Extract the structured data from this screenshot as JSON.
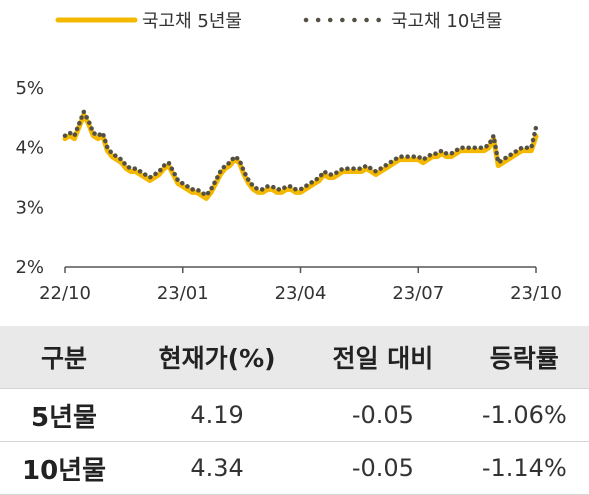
{
  "chart_data": {
    "type": "line",
    "title": "",
    "xlabel": "",
    "ylabel": "",
    "ylim": [
      2,
      5
    ],
    "y_ticks": [
      "5%",
      "4%",
      "3%",
      "2%"
    ],
    "y_tick_values": [
      5,
      4,
      3,
      2
    ],
    "x_ticks": [
      "22/10",
      "23/01",
      "23/04",
      "23/07",
      "23/10"
    ],
    "grid": false,
    "legend_position": "top",
    "x_index_range": [
      0,
      100
    ],
    "series": [
      {
        "name": "국고채 5년물",
        "color": "#f5b800",
        "style": "solid",
        "x": [
          0,
          1,
          2,
          3,
          4,
          5,
          6,
          7,
          8,
          9,
          10,
          11,
          12,
          13,
          14,
          15,
          16,
          17,
          18,
          19,
          20,
          21,
          22,
          23,
          24,
          25,
          26,
          27,
          28,
          29,
          30,
          31,
          32,
          33,
          34,
          35,
          36,
          37,
          38,
          39,
          40,
          41,
          42,
          43,
          44,
          45,
          46,
          47,
          48,
          49,
          50,
          51,
          52,
          53,
          54,
          55,
          56,
          57,
          58,
          59,
          60,
          61,
          62,
          63,
          64,
          65,
          66,
          67,
          68,
          69,
          70,
          71,
          72,
          73,
          74,
          75,
          76,
          77,
          78,
          79,
          80,
          81,
          82,
          83,
          84,
          85,
          86,
          87,
          88,
          89,
          90,
          91,
          92,
          93,
          94,
          95,
          96,
          97,
          98,
          99,
          100
        ],
        "values": [
          4.15,
          4.2,
          4.15,
          4.35,
          4.55,
          4.4,
          4.2,
          4.15,
          4.2,
          3.95,
          3.85,
          3.8,
          3.75,
          3.65,
          3.6,
          3.6,
          3.55,
          3.5,
          3.45,
          3.5,
          3.55,
          3.65,
          3.7,
          3.55,
          3.4,
          3.35,
          3.3,
          3.25,
          3.25,
          3.2,
          3.15,
          3.25,
          3.4,
          3.55,
          3.65,
          3.7,
          3.8,
          3.75,
          3.55,
          3.4,
          3.3,
          3.25,
          3.25,
          3.3,
          3.3,
          3.25,
          3.25,
          3.3,
          3.3,
          3.25,
          3.25,
          3.3,
          3.35,
          3.4,
          3.45,
          3.55,
          3.5,
          3.5,
          3.55,
          3.6,
          3.6,
          3.6,
          3.6,
          3.6,
          3.65,
          3.6,
          3.55,
          3.6,
          3.65,
          3.7,
          3.75,
          3.8,
          3.8,
          3.8,
          3.8,
          3.8,
          3.75,
          3.8,
          3.85,
          3.85,
          3.9,
          3.85,
          3.85,
          3.9,
          3.95,
          3.95,
          3.95,
          3.95,
          3.95,
          3.95,
          4.0,
          4.15,
          3.7,
          3.75,
          3.8,
          3.85,
          3.9,
          3.95,
          3.95,
          3.95,
          4.19
        ]
      },
      {
        "name": "국고채 10년물",
        "color": "#555044",
        "style": "dotted",
        "x": [
          0,
          1,
          2,
          3,
          4,
          5,
          6,
          7,
          8,
          9,
          10,
          11,
          12,
          13,
          14,
          15,
          16,
          17,
          18,
          19,
          20,
          21,
          22,
          23,
          24,
          25,
          26,
          27,
          28,
          29,
          30,
          31,
          32,
          33,
          34,
          35,
          36,
          37,
          38,
          39,
          40,
          41,
          42,
          43,
          44,
          45,
          46,
          47,
          48,
          49,
          50,
          51,
          52,
          53,
          54,
          55,
          56,
          57,
          58,
          59,
          60,
          61,
          62,
          63,
          64,
          65,
          66,
          67,
          68,
          69,
          70,
          71,
          72,
          73,
          74,
          75,
          76,
          77,
          78,
          79,
          80,
          81,
          82,
          83,
          84,
          85,
          86,
          87,
          88,
          89,
          90,
          91,
          92,
          93,
          94,
          95,
          96,
          97,
          98,
          99,
          100
        ],
        "values": [
          4.2,
          4.25,
          4.2,
          4.4,
          4.6,
          4.45,
          4.25,
          4.2,
          4.25,
          4.0,
          3.9,
          3.85,
          3.8,
          3.7,
          3.65,
          3.65,
          3.6,
          3.55,
          3.5,
          3.55,
          3.6,
          3.7,
          3.75,
          3.6,
          3.45,
          3.4,
          3.35,
          3.3,
          3.3,
          3.25,
          3.2,
          3.3,
          3.45,
          3.6,
          3.7,
          3.75,
          3.85,
          3.8,
          3.6,
          3.45,
          3.35,
          3.3,
          3.3,
          3.35,
          3.35,
          3.3,
          3.3,
          3.35,
          3.35,
          3.3,
          3.3,
          3.35,
          3.4,
          3.45,
          3.5,
          3.6,
          3.55,
          3.55,
          3.6,
          3.65,
          3.65,
          3.65,
          3.65,
          3.65,
          3.7,
          3.65,
          3.6,
          3.65,
          3.7,
          3.75,
          3.8,
          3.85,
          3.85,
          3.85,
          3.85,
          3.85,
          3.8,
          3.85,
          3.9,
          3.9,
          3.95,
          3.9,
          3.9,
          3.95,
          4.0,
          4.0,
          4.0,
          4.0,
          4.0,
          4.0,
          4.05,
          4.2,
          3.75,
          3.8,
          3.85,
          3.9,
          3.95,
          4.0,
          4.0,
          4.0,
          4.34
        ]
      }
    ]
  },
  "table": {
    "headers": [
      "구분",
      "현재가(%)",
      "전일 대비",
      "등락률"
    ],
    "rows": [
      [
        "5년물",
        "4.19",
        "-0.05",
        "-1.06%"
      ],
      [
        "10년물",
        "4.34",
        "-0.05",
        "-1.14%"
      ]
    ]
  }
}
